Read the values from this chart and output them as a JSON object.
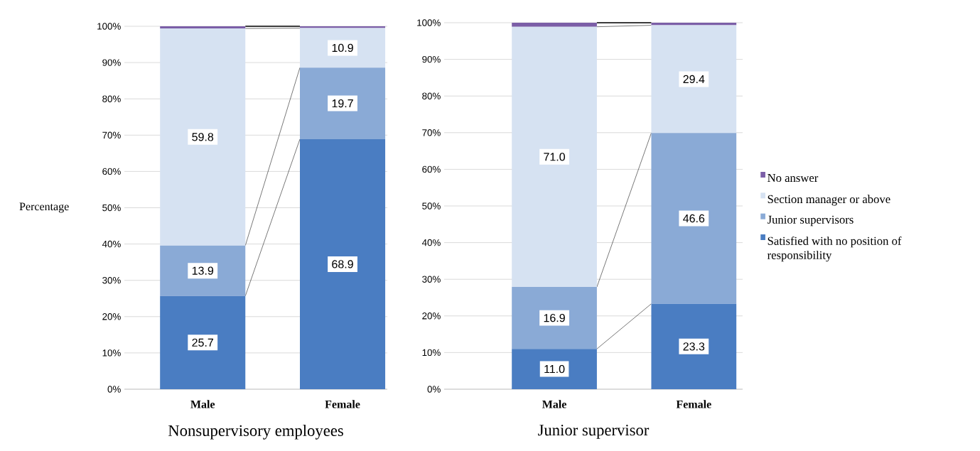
{
  "chart_data": [
    {
      "type": "bar",
      "stacked": true,
      "title": "Nonsupervisory employees",
      "ylabel": "Percentage",
      "categories": [
        "Male",
        "Female"
      ],
      "ylim": [
        0,
        100
      ],
      "yticks": [
        {
          "value": 0,
          "label": "0%"
        },
        {
          "value": 10,
          "label": "10%"
        },
        {
          "value": 20,
          "label": "20%"
        },
        {
          "value": 30,
          "label": "30%"
        },
        {
          "value": 40,
          "label": "40%"
        },
        {
          "value": 50,
          "label": "50%"
        },
        {
          "value": 60,
          "label": "60%"
        },
        {
          "value": 70,
          "label": "70%"
        },
        {
          "value": 80,
          "label": "80%"
        },
        {
          "value": 90,
          "label": "90%"
        },
        {
          "value": 100,
          "label": "100%"
        }
      ],
      "grid": "y",
      "series": [
        {
          "color": "#4a7dc2",
          "values": [
            25.7,
            68.9
          ],
          "value_labels": [
            "25.7",
            "68.9"
          ]
        },
        {
          "color": "#8aaad6",
          "values": [
            13.9,
            19.7
          ],
          "value_labels": [
            "13.9",
            "19.7"
          ]
        },
        {
          "color": "#d6e2f2",
          "values": [
            59.8,
            10.9
          ],
          "value_labels": [
            "59.8",
            "10.9"
          ]
        },
        {
          "color": "#7b5ea7",
          "values": [
            0.6,
            0.5
          ],
          "value_labels": [
            null,
            null
          ]
        }
      ]
    },
    {
      "type": "bar",
      "stacked": true,
      "title": "Junior supervisor",
      "categories": [
        "Male",
        "Female"
      ],
      "ylim": [
        0,
        100
      ],
      "yticks": [
        {
          "value": 0,
          "label": "0%"
        },
        {
          "value": 10,
          "label": "10%"
        },
        {
          "value": 20,
          "label": "20%"
        },
        {
          "value": 30,
          "label": "30%"
        },
        {
          "value": 40,
          "label": "40%"
        },
        {
          "value": 50,
          "label": "50%"
        },
        {
          "value": 60,
          "label": "60%"
        },
        {
          "value": 70,
          "label": "70%"
        },
        {
          "value": 80,
          "label": "80%"
        },
        {
          "value": 90,
          "label": "90%"
        },
        {
          "value": 100,
          "label": "100%"
        }
      ],
      "grid": "y",
      "legend": "right",
      "series": [
        {
          "name": "Satisfied with no position of responsibility",
          "color": "#4a7dc2",
          "values": [
            11.0,
            23.3
          ],
          "value_labels": [
            "11.0",
            "23.3"
          ]
        },
        {
          "name": "Junior supervisors",
          "color": "#8aaad6",
          "values": [
            16.9,
            46.6
          ],
          "value_labels": [
            "16.9",
            "46.6"
          ]
        },
        {
          "name": "Section manager or above",
          "color": "#d6e2f2",
          "values": [
            71.0,
            29.4
          ],
          "value_labels": [
            "71.0",
            "29.4"
          ]
        },
        {
          "name": "No answer",
          "color": "#7b5ea7",
          "values": [
            1.1,
            0.7
          ],
          "value_labels": [
            null,
            null
          ]
        }
      ]
    }
  ]
}
